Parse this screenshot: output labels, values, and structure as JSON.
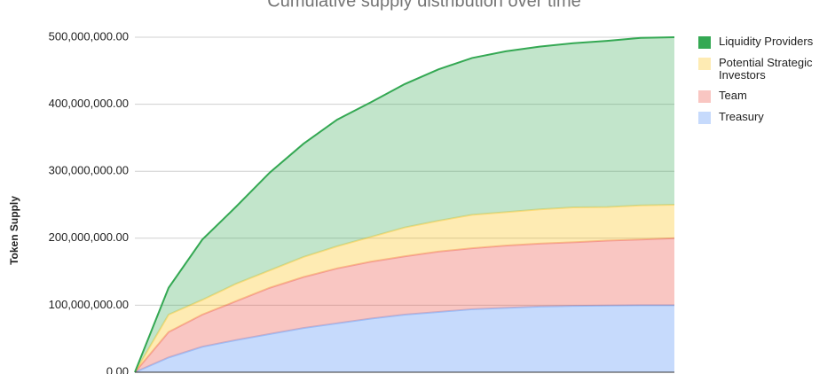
{
  "chart_data": {
    "type": "stacked-area",
    "title": "Cumulative supply distribution over time",
    "y_label": "Token Supply",
    "categories": [
      null,
      null,
      null,
      null,
      null,
      null,
      null,
      null,
      null,
      null,
      null,
      null,
      null,
      null,
      null,
      null,
      null
    ],
    "series": [
      {
        "name": "Treasury",
        "color": "#4285f4",
        "values": [
          0,
          22000000,
          38000000,
          48000000,
          57000000,
          66000000,
          73000000,
          80000000,
          86000000,
          90000000,
          94000000,
          96000000,
          98000000,
          99000000,
          99500000,
          100000000,
          100000000
        ]
      },
      {
        "name": "Team",
        "color": "#ea4335",
        "values": [
          0,
          38000000,
          48000000,
          58000000,
          69000000,
          76000000,
          82000000,
          85000000,
          87000000,
          90000000,
          91000000,
          93000000,
          94000000,
          95000000,
          97000000,
          98000000,
          100000000
        ]
      },
      {
        "name": "Potential Strategic Investors",
        "color": "#fbbc04",
        "values": [
          0,
          26000000,
          22000000,
          26000000,
          26000000,
          30000000,
          33000000,
          37000000,
          43000000,
          46000000,
          50000000,
          50000000,
          51000000,
          52000000,
          50000000,
          51000000,
          50000000
        ]
      },
      {
        "name": "Liquidity Providers",
        "color": "#34a853",
        "values": [
          0,
          40000000,
          90000000,
          115000000,
          146000000,
          169000000,
          189000000,
          201000000,
          214000000,
          226000000,
          234000000,
          240000000,
          243000000,
          245000000,
          248000000,
          250000000,
          250000000
        ]
      }
    ],
    "ylim": [
      0,
      500000000
    ],
    "yticks": [
      {
        "value": 0,
        "label": "0.00"
      },
      {
        "value": 100000000,
        "label": "100,000,000.00"
      },
      {
        "value": 200000000,
        "label": "200,000,000.00"
      },
      {
        "value": 300000000,
        "label": "300,000,000.00"
      },
      {
        "value": 400000000,
        "label": "400,000,000.00"
      },
      {
        "value": 500000000,
        "label": "500,000,000.00"
      }
    ],
    "grid": true,
    "legend": "right"
  }
}
